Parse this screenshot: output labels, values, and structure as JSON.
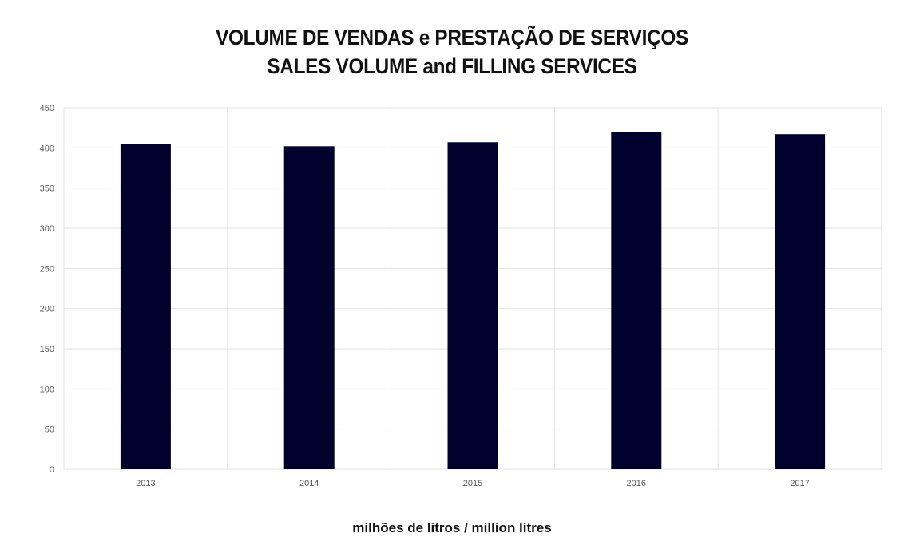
{
  "chart_data": {
    "type": "bar",
    "title": "VOLUME DE VENDAS e PRESTAÇÃO DE SERVIÇOS",
    "subtitle": "SALES VOLUME and FILLING SERVICES",
    "xlabel": "milhões de litros / million litres",
    "ylabel": "",
    "categories": [
      "2013",
      "2014",
      "2015",
      "2016",
      "2017"
    ],
    "values": [
      405,
      402,
      407,
      420,
      417
    ],
    "ylim": [
      0,
      450
    ],
    "yticks": [
      0,
      50,
      100,
      150,
      200,
      250,
      300,
      350,
      400,
      450
    ],
    "grid": true,
    "bar_color": "#01012e",
    "grid_color": "#e3e3e3"
  }
}
